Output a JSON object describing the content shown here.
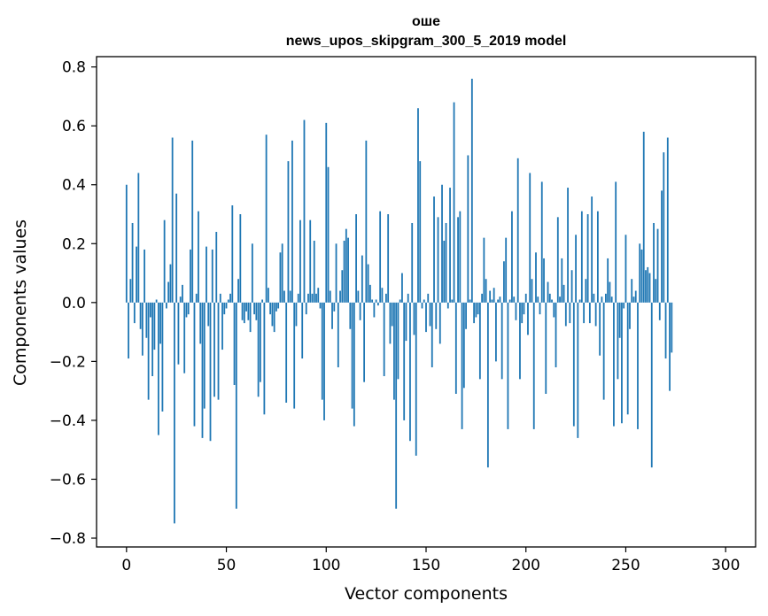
{
  "chart_data": {
    "type": "bar",
    "title_line1": "оше",
    "title_line2": "news_upos_skipgram_300_5_2019 model",
    "xlabel": "Vector components",
    "ylabel": "Components values",
    "xlim": [
      -15,
      315
    ],
    "ylim": [
      -0.83,
      0.835
    ],
    "xticks": [
      0,
      50,
      100,
      150,
      200,
      250,
      300
    ],
    "xtick_labels": [
      "0",
      "50",
      "100",
      "150",
      "200",
      "250",
      "300"
    ],
    "yticks": [
      0.8,
      0.6,
      0.4,
      0.2,
      0.0,
      -0.2,
      -0.4,
      -0.6,
      -0.8
    ],
    "ytick_labels": [
      "0.8",
      "0.6",
      "0.4",
      "0.2",
      "0.0",
      "−0.2",
      "−0.4",
      "−0.6",
      "−0.8"
    ],
    "bar_color": "#1f77b4",
    "values": [
      0.4,
      -0.19,
      0.08,
      0.27,
      -0.07,
      0.19,
      0.44,
      -0.09,
      -0.18,
      0.18,
      -0.12,
      -0.33,
      -0.05,
      -0.25,
      -0.16,
      0.01,
      -0.45,
      -0.14,
      -0.37,
      0.28,
      -0.02,
      0.07,
      0.13,
      0.56,
      -0.75,
      0.37,
      -0.21,
      0.02,
      0.06,
      -0.24,
      -0.05,
      -0.04,
      0.18,
      0.55,
      -0.42,
      0.03,
      0.31,
      -0.14,
      -0.46,
      -0.36,
      0.19,
      -0.08,
      -0.47,
      0.18,
      -0.32,
      0.24,
      -0.33,
      0.03,
      -0.16,
      -0.04,
      -0.02,
      0.01,
      0.03,
      0.33,
      -0.28,
      -0.7,
      0.08,
      0.3,
      -0.06,
      -0.07,
      -0.03,
      -0.06,
      -0.1,
      0.2,
      -0.04,
      -0.06,
      -0.32,
      -0.27,
      0.01,
      -0.38,
      0.57,
      0.05,
      -0.04,
      -0.08,
      -0.1,
      -0.03,
      -0.02,
      0.17,
      0.2,
      0.04,
      -0.34,
      0.48,
      0.04,
      0.55,
      -0.36,
      -0.08,
      0.03,
      0.28,
      -0.19,
      0.62,
      -0.04,
      0.03,
      0.28,
      0.03,
      0.21,
      0.03,
      0.05,
      -0.02,
      -0.33,
      -0.4,
      0.61,
      0.46,
      0.04,
      -0.09,
      -0.03,
      0.2,
      -0.22,
      0.04,
      0.11,
      0.21,
      0.25,
      0.22,
      -0.09,
      -0.36,
      -0.42,
      0.3,
      0.04,
      -0.06,
      0.16,
      -0.27,
      0.55,
      0.13,
      0.06,
      0.01,
      -0.05,
      0.01,
      -0.01,
      0.31,
      0.05,
      -0.25,
      0.03,
      0.3,
      -0.14,
      -0.08,
      -0.33,
      -0.7,
      -0.26,
      0.01,
      0.1,
      -0.4,
      -0.13,
      0.03,
      -0.47,
      0.27,
      -0.11,
      -0.52,
      0.66,
      0.48,
      -0.02,
      0.01,
      -0.1,
      0.03,
      -0.08,
      -0.22,
      0.36,
      -0.09,
      0.29,
      -0.14,
      0.4,
      0.21,
      0.27,
      -0.02,
      0.39,
      0.01,
      0.68,
      -0.31,
      0.29,
      0.31,
      -0.43,
      -0.29,
      -0.09,
      0.5,
      0.01,
      0.76,
      -0.07,
      -0.05,
      -0.04,
      -0.26,
      0.03,
      0.22,
      0.08,
      -0.56,
      0.04,
      0.01,
      0.05,
      -0.2,
      0.01,
      0.02,
      -0.26,
      0.14,
      0.22,
      -0.43,
      0.01,
      0.31,
      0.02,
      -0.06,
      0.49,
      -0.26,
      -0.07,
      -0.04,
      0.03,
      -0.11,
      0.44,
      0.08,
      -0.43,
      0.17,
      0.02,
      -0.04,
      0.41,
      0.15,
      -0.31,
      0.07,
      0.03,
      0.01,
      -0.05,
      -0.22,
      0.29,
      0.02,
      0.15,
      0.06,
      -0.08,
      0.39,
      -0.07,
      0.11,
      -0.42,
      0.23,
      -0.46,
      0.01,
      0.31,
      -0.07,
      0.08,
      0.3,
      -0.07,
      0.36,
      0.03,
      -0.08,
      0.31,
      -0.18,
      0.02,
      -0.33,
      0.03,
      0.15,
      0.07,
      0.02,
      -0.42,
      0.41,
      -0.26,
      -0.12,
      -0.41,
      -0.02,
      0.23,
      -0.38,
      -0.09,
      0.08,
      0.02,
      0.04,
      -0.43,
      0.2,
      0.18,
      0.58,
      0.11,
      0.12,
      0.1,
      -0.56,
      0.27,
      0.08,
      0.25,
      -0.06,
      0.38,
      0.51,
      -0.19,
      0.56,
      -0.3,
      -0.17
    ]
  }
}
